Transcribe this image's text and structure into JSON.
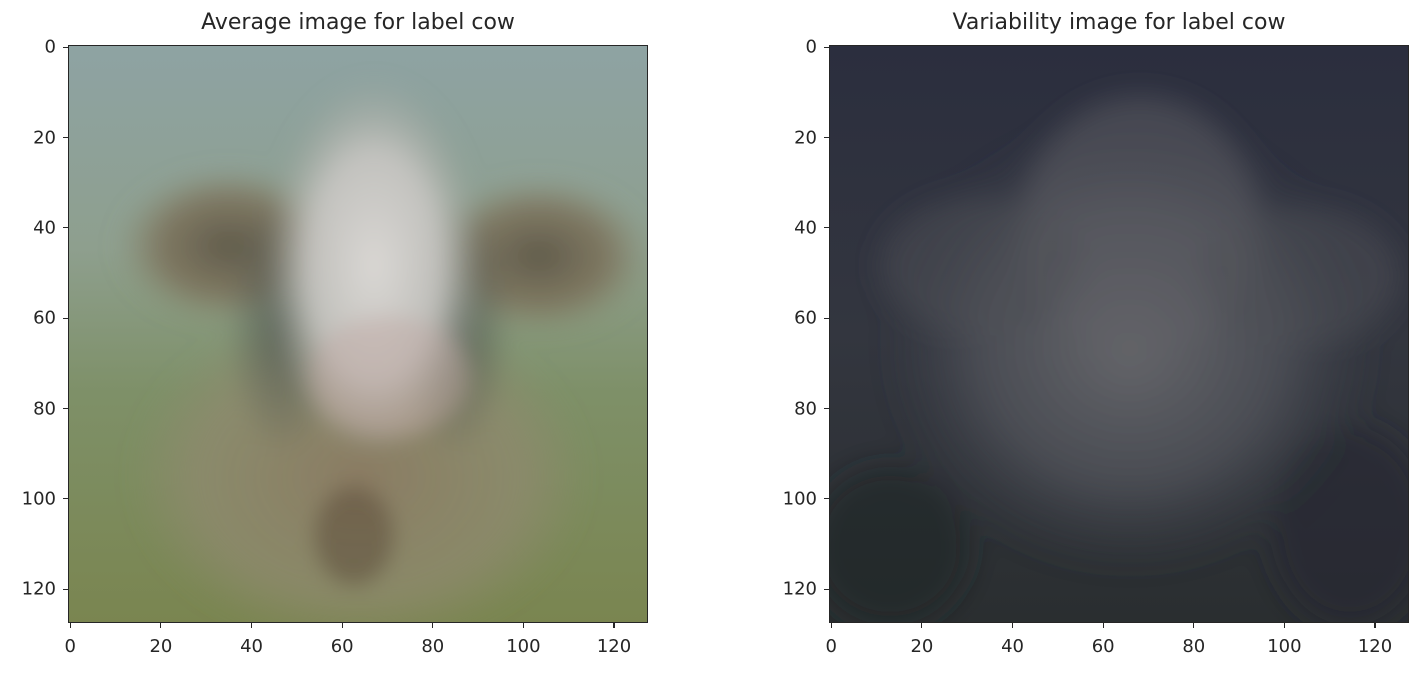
{
  "chart_data": [
    {
      "type": "heatmap",
      "title": "Average image for label cow",
      "xlabel": "",
      "ylabel": "",
      "xlim": [
        0,
        127
      ],
      "ylim": [
        127,
        0
      ],
      "xticks": [
        0,
        20,
        40,
        60,
        80,
        100,
        120
      ],
      "yticks": [
        0,
        20,
        40,
        60,
        80,
        100,
        120
      ],
      "grid": false,
      "content": "RGB image",
      "colors": {
        "sky": "#8ea39b",
        "grass": "#7a8a4e",
        "face": "#d6d2cc",
        "ears": "#7b6e55",
        "body": "#8d8670"
      }
    },
    {
      "type": "heatmap",
      "title": "Variability image for label cow",
      "xlabel": "",
      "ylabel": "",
      "xlim": [
        0,
        127
      ],
      "ylim": [
        127,
        0
      ],
      "xticks": [
        0,
        20,
        40,
        60,
        80,
        100,
        120
      ],
      "yticks": [
        0,
        20,
        40,
        60,
        80,
        100,
        120
      ],
      "grid": false,
      "content": "RGB image",
      "colors": {
        "background": "#2f3341",
        "glow": "#5d5f66",
        "dark": "#262a2f"
      }
    }
  ]
}
